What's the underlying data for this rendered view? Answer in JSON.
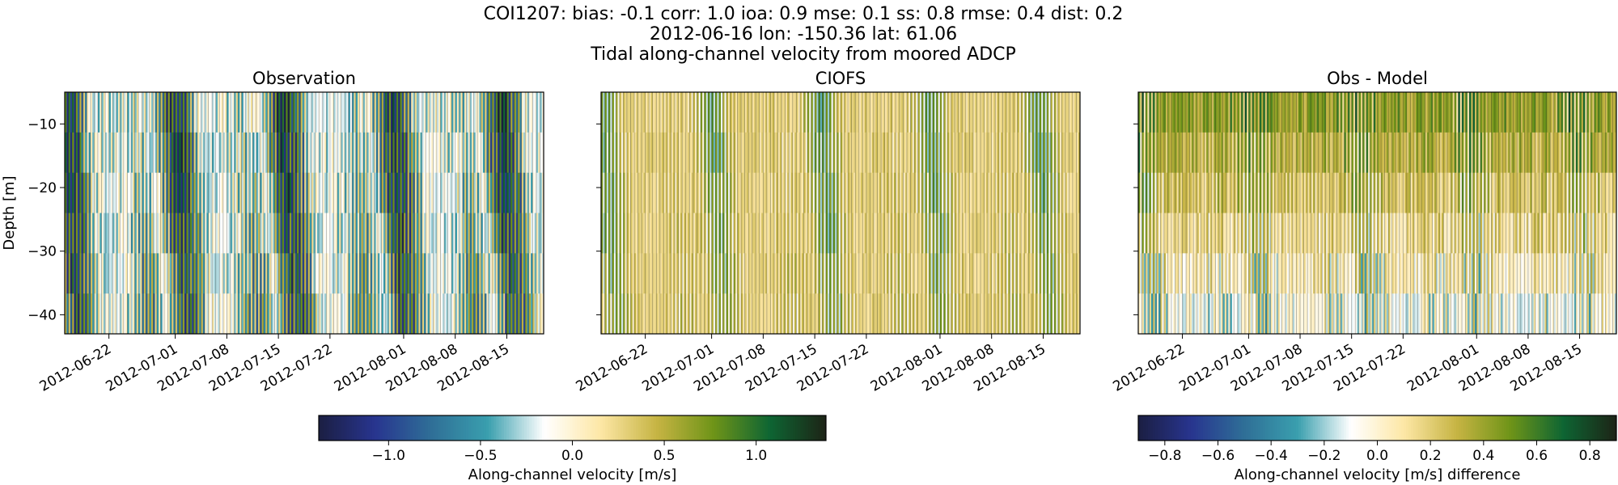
{
  "figure": {
    "title_lines": [
      "COI1207: bias: -0.1  corr: 1.0  ioa: 0.9  mse: 0.1  ss: 0.8  rmse: 0.4  dist: 0.2",
      "2012-06-16 lon: -150.36 lat: 61.06",
      "Tidal along-channel velocity from moored ADCP"
    ]
  },
  "colors": {
    "colormap_velocity": [
      "#1b1f42",
      "#28358f",
      "#2f6f97",
      "#3a9fae",
      "#ffffff",
      "#fde7a6",
      "#c6b443",
      "#6f9418",
      "#0e6533",
      "#1d2416"
    ],
    "colormap_difference": [
      "#1b1f42",
      "#28358f",
      "#2f6f97",
      "#3a9fae",
      "#ffffff",
      "#fde7a6",
      "#c6b443",
      "#6f9418",
      "#0e6533",
      "#1d2416"
    ]
  },
  "chart_data": [
    {
      "type": "heatmap",
      "title": "Observation",
      "xlabel": "",
      "ylabel": "Depth [m]",
      "ylim": [
        -43,
        -5
      ],
      "y_ticks": [
        -10,
        -20,
        -30,
        -40
      ],
      "x_range": [
        "2012-06-16",
        "2012-08-20"
      ],
      "x_ticks": [
        "2012-06-22",
        "2012-07-01",
        "2012-07-08",
        "2012-07-15",
        "2012-07-22",
        "2012-08-01",
        "2012-08-08",
        "2012-08-15"
      ],
      "value_range": [
        -1.38,
        1.38
      ],
      "signal": "observation"
    },
    {
      "type": "heatmap",
      "title": "CIOFS",
      "xlabel": "",
      "ylabel": "",
      "ylim": [
        -43,
        -5
      ],
      "y_ticks": [
        -10,
        -20,
        -30,
        -40
      ],
      "x_range": [
        "2012-06-16",
        "2012-08-20"
      ],
      "x_ticks": [
        "2012-06-22",
        "2012-07-01",
        "2012-07-08",
        "2012-07-15",
        "2012-07-22",
        "2012-08-01",
        "2012-08-08",
        "2012-08-15"
      ],
      "value_range": [
        -1.38,
        1.38
      ],
      "signal": "model"
    },
    {
      "type": "heatmap",
      "title": "Obs - Model",
      "xlabel": "",
      "ylabel": "",
      "ylim": [
        -43,
        -5
      ],
      "y_ticks": [
        -10,
        -20,
        -30,
        -40
      ],
      "x_range": [
        "2012-06-16",
        "2012-08-20"
      ],
      "x_ticks": [
        "2012-06-22",
        "2012-07-01",
        "2012-07-08",
        "2012-07-15",
        "2012-07-22",
        "2012-08-01",
        "2012-08-08",
        "2012-08-15"
      ],
      "value_range": [
        -0.9,
        0.9
      ],
      "signal": "difference"
    }
  ],
  "colorbars": [
    {
      "label": "Along-channel velocity [m/s]",
      "range": [
        -1.38,
        1.38
      ],
      "ticks": [
        -1.0,
        -0.5,
        0.0,
        0.5,
        1.0
      ],
      "tick_labels": [
        "−1.0",
        "−0.5",
        "0.0",
        "0.5",
        "1.0"
      ]
    },
    {
      "label": "Along-channel velocity [m/s] difference",
      "range": [
        -0.9,
        0.9
      ],
      "ticks": [
        -0.8,
        -0.6,
        -0.4,
        -0.2,
        0.0,
        0.2,
        0.4,
        0.6,
        0.8
      ],
      "tick_labels": [
        "−0.8",
        "−0.6",
        "−0.4",
        "−0.2",
        "0.0",
        "0.2",
        "0.4",
        "0.6",
        "0.8"
      ]
    }
  ]
}
